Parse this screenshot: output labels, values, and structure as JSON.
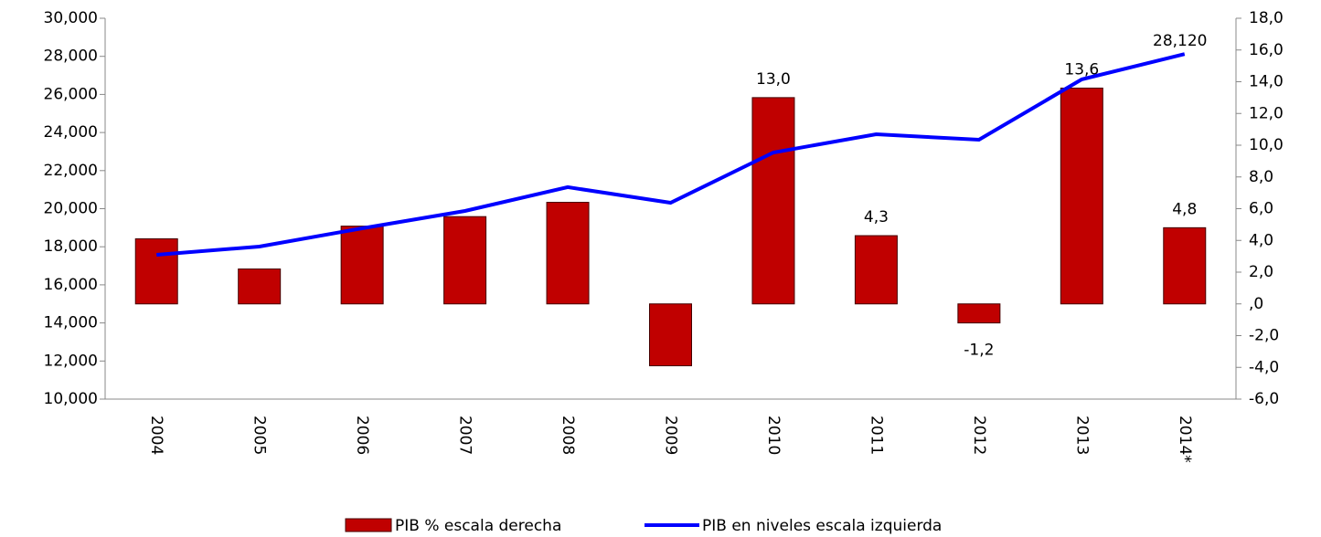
{
  "chart_data": {
    "type": "bar_line",
    "categories": [
      "2004",
      "2005",
      "2006",
      "2007",
      "2008",
      "2009",
      "2010",
      "2011",
      "2012",
      "2013",
      "2014*"
    ],
    "series": [
      {
        "name": "PIB % escala derecha",
        "type": "bar",
        "axis": "y2",
        "color": "#c00000",
        "values": [
          4.1,
          2.2,
          4.9,
          5.5,
          6.4,
          -3.9,
          13.0,
          4.3,
          -1.2,
          13.6,
          4.8
        ],
        "value_labels": [
          null,
          null,
          null,
          null,
          null,
          null,
          "13,0",
          "4,3",
          "-1,2",
          "13,6",
          "4,8"
        ]
      },
      {
        "name": "PIB en niveles escala izquierda",
        "type": "line",
        "axis": "y",
        "color": "#0000ff",
        "values": [
          17580,
          18010,
          18970,
          19880,
          21130,
          20310,
          22950,
          23910,
          23620,
          26790,
          28120
        ],
        "value_labels": [
          null,
          null,
          null,
          null,
          null,
          null,
          null,
          null,
          null,
          null,
          "28,120"
        ]
      }
    ],
    "ylim": [
      10000,
      30000
    ],
    "yticks": [
      {
        "value": 10000,
        "label": "10,000"
      },
      {
        "value": 12000,
        "label": "12,000"
      },
      {
        "value": 14000,
        "label": "14,000"
      },
      {
        "value": 16000,
        "label": "16,000"
      },
      {
        "value": 18000,
        "label": "18,000"
      },
      {
        "value": 20000,
        "label": "20,000"
      },
      {
        "value": 22000,
        "label": "22,000"
      },
      {
        "value": 24000,
        "label": "24,000"
      },
      {
        "value": 26000,
        "label": "26,000"
      },
      {
        "value": 28000,
        "label": "28,000"
      },
      {
        "value": 30000,
        "label": "30,000"
      }
    ],
    "y2lim": [
      -6,
      18
    ],
    "y2ticks": [
      {
        "value": -6,
        "label": "-6,0"
      },
      {
        "value": -4,
        "label": "-4,0"
      },
      {
        "value": -2,
        "label": "-2,0"
      },
      {
        "value": 0,
        "label": ",0"
      },
      {
        "value": 2,
        "label": "2,0"
      },
      {
        "value": 4,
        "label": "4,0"
      },
      {
        "value": 6,
        "label": "6,0"
      },
      {
        "value": 8,
        "label": "8,0"
      },
      {
        "value": 10,
        "label": "10,0"
      },
      {
        "value": 12,
        "label": "12,0"
      },
      {
        "value": 14,
        "label": "14,0"
      },
      {
        "value": 16,
        "label": "16,0"
      },
      {
        "value": 18,
        "label": "18,0"
      }
    ],
    "legend": "bottom"
  }
}
